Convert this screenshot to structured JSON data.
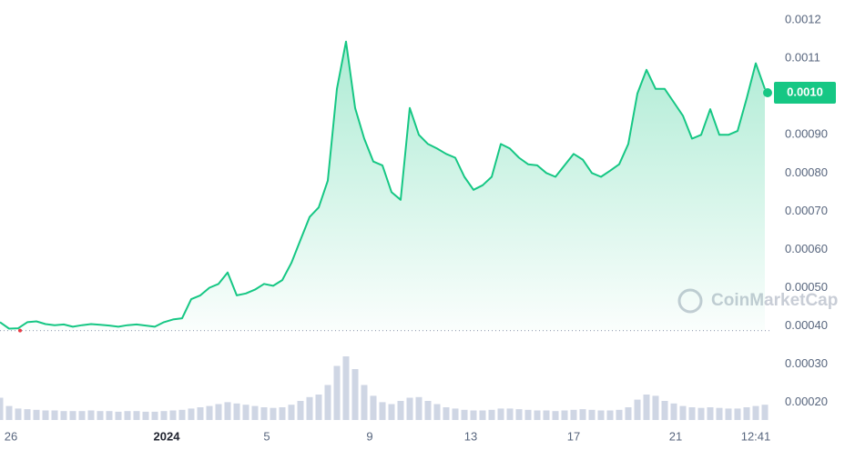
{
  "chart_data": {
    "type": "line",
    "watermark": "CoinMarketCap",
    "color": "#16c784",
    "values": [
      0.00041,
      0.000393,
      0.000394,
      0.00041,
      0.000412,
      0.000405,
      0.000402,
      0.000404,
      0.000398,
      0.000402,
      0.000405,
      0.000403,
      0.000401,
      0.000398,
      0.000402,
      0.000404,
      0.000401,
      0.000398,
      0.00041,
      0.000417,
      0.00042,
      0.00047,
      0.00048,
      0.0005,
      0.00051,
      0.00054,
      0.00048,
      0.000485,
      0.000495,
      0.00051,
      0.000505,
      0.00052,
      0.000565,
      0.000625,
      0.000685,
      0.00071,
      0.00078,
      0.00102,
      0.001144,
      0.00097,
      0.00089,
      0.00083,
      0.00082,
      0.00075,
      0.00073,
      0.00097,
      0.0009,
      0.000876,
      0.000864,
      0.00085,
      0.00084,
      0.00079,
      0.000756,
      0.000768,
      0.00079,
      0.000876,
      0.000864,
      0.00084,
      0.000823,
      0.00082,
      0.0008,
      0.00079,
      0.00082,
      0.00085,
      0.000835,
      0.0008,
      0.00079,
      0.000806,
      0.000823,
      0.000876,
      0.001008,
      0.00107,
      0.00102,
      0.00102,
      0.000985,
      0.00095,
      0.00089,
      0.0009,
      0.000967,
      0.0009,
      0.0009,
      0.00091,
      0.000995,
      0.001087,
      0.00102
    ],
    "volume": {
      "axis": "y2",
      "color": "#cfd6e4",
      "values": [
        35,
        22,
        18,
        17,
        16,
        15,
        15,
        14,
        14,
        14,
        15,
        14,
        14,
        13,
        14,
        14,
        13,
        13,
        14,
        15,
        16,
        18,
        20,
        22,
        25,
        28,
        26,
        24,
        22,
        20,
        19,
        20,
        24,
        30,
        36,
        40,
        55,
        85,
        100,
        80,
        55,
        38,
        28,
        25,
        30,
        35,
        36,
        30,
        25,
        20,
        18,
        16,
        15,
        15,
        16,
        18,
        18,
        17,
        16,
        15,
        15,
        14,
        15,
        16,
        17,
        16,
        15,
        15,
        16,
        20,
        32,
        40,
        38,
        30,
        26,
        22,
        20,
        19,
        20,
        19,
        18,
        18,
        20,
        22,
        24
      ]
    },
    "y2lim": [
      0,
      100
    ],
    "reference_price": 0.000388,
    "current_price": {
      "value": 0.00101,
      "label": "0.0010"
    },
    "xlim": [
      0,
      84.8
    ],
    "xticks": [
      {
        "value": 1.2,
        "label": "26"
      },
      {
        "value": 18.3,
        "label": "2024"
      },
      {
        "value": 29.3,
        "label": "5"
      },
      {
        "value": 40.6,
        "label": "9"
      },
      {
        "value": 51.7,
        "label": "13"
      },
      {
        "value": 63,
        "label": "17"
      },
      {
        "value": 74.2,
        "label": "21"
      },
      {
        "value": 83,
        "label": "12:41"
      }
    ],
    "ylim": [
      0.000135,
      0.0012526
    ],
    "yticks": [
      0.0012,
      0.0011,
      {
        "value": 0.0009,
        "label": "0.00090"
      },
      {
        "value": 0.0008,
        "label": "0.00080"
      },
      {
        "value": 0.0007,
        "label": "0.00070"
      },
      {
        "value": 0.0006,
        "label": "0.00060"
      },
      {
        "value": 0.0005,
        "label": "0.00050"
      },
      {
        "value": 0.0004,
        "label": "0.00040"
      },
      {
        "value": 0.0003,
        "label": "0.00030"
      },
      {
        "value": 0.0002,
        "label": "0.00020"
      }
    ],
    "grid": true
  }
}
